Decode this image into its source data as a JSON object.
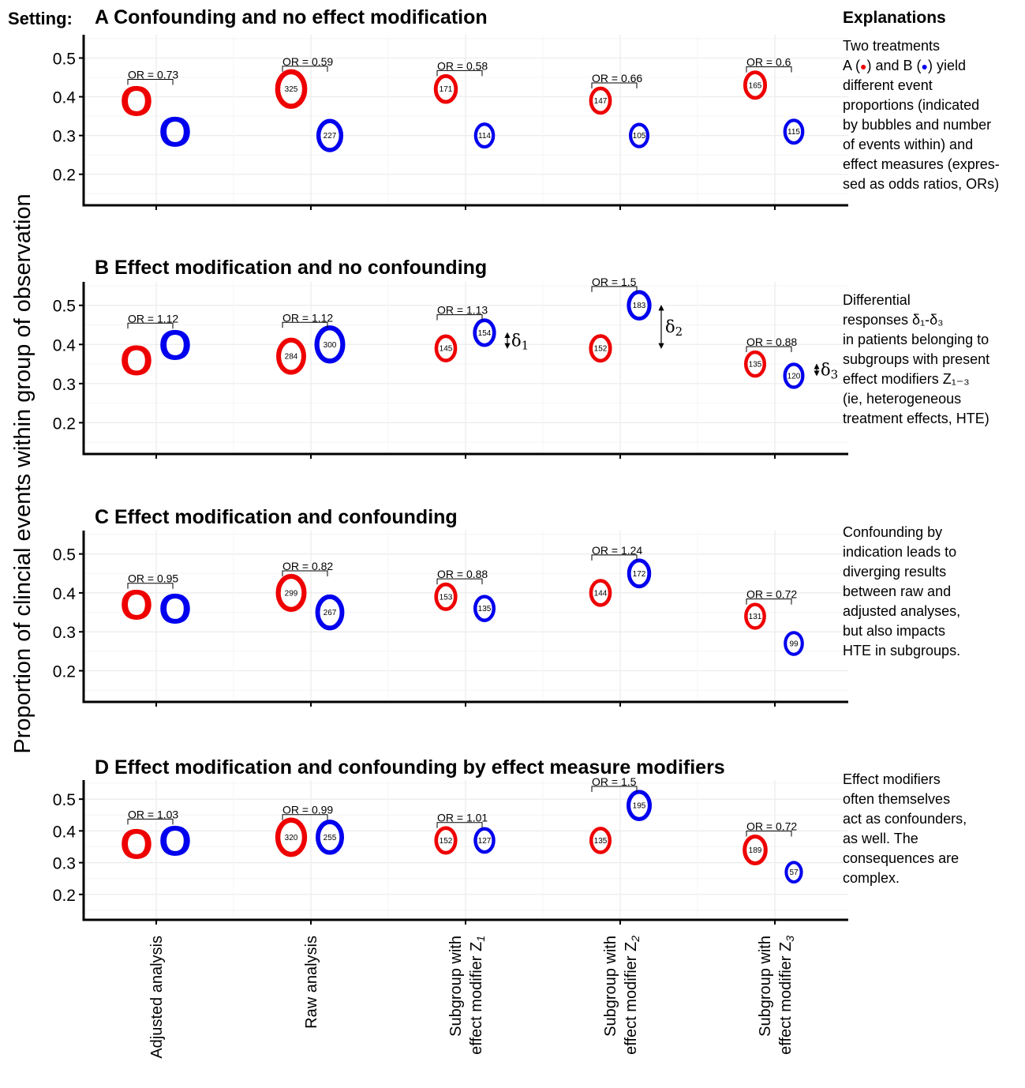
{
  "setting_label": "Setting:",
  "y_axis_label": "Proportion of clincial events within group of observation",
  "colors": {
    "A": "#ee0000",
    "B": "#0000ee"
  },
  "explanations": {
    "header": "Explanations",
    "A": [
      "Two treatments",
      "A (●) and B (●) yield",
      "different event",
      "proportions (indicated",
      "by bubbles and number",
      "of events within) and",
      "effect measures (expres-",
      "sed as odds ratios, ORs)"
    ],
    "B": [
      "Differential",
      "responses δ₁-δ₃",
      "in patients belonging to",
      "subgroups with present",
      "effect modifiers Z₁₋₃",
      "(ie, heterogeneous",
      "treatment effects, HTE)"
    ],
    "C": [
      "Confounding by",
      "indication leads to",
      "diverging results",
      "between raw and",
      "adjusted analyses,",
      "but also impacts",
      "HTE in subgroups."
    ],
    "D": [
      "Effect modifiers",
      "often themselves",
      "act as confounders,",
      "as well. The",
      "consequences are",
      "complex."
    ]
  },
  "chart_data": [
    {
      "type": "scatter",
      "title": "A Confounding and no effect modification",
      "categories": [
        "Adjusted analysis",
        "Raw analysis",
        "Subgroup with effect modifier Z1",
        "Subgroup with effect modifier Z2",
        "Subgroup with effect modifier Z3"
      ],
      "ylim": [
        0.12,
        0.56
      ],
      "yticks": [
        "0.2",
        "0.3",
        "0.4",
        "0.5"
      ],
      "series": [
        {
          "name": "A",
          "values": [
            0.39,
            0.42,
            0.42,
            0.39,
            0.43
          ],
          "counts": [
            "",
            "325",
            "171",
            "147",
            "165"
          ]
        },
        {
          "name": "B",
          "values": [
            0.31,
            0.3,
            0.3,
            0.3,
            0.31
          ],
          "counts": [
            "",
            "227",
            "114",
            "105",
            "115"
          ]
        }
      ],
      "or_labels": [
        "OR = 0.73",
        "OR = 0.59",
        "OR = 0.58",
        "OR = 0.66",
        "OR = 0.6"
      ],
      "deltas": []
    },
    {
      "type": "scatter",
      "title": "B Effect modification and no confounding",
      "categories": [
        "Adjusted analysis",
        "Raw analysis",
        "Subgroup with effect modifier Z1",
        "Subgroup with effect modifier Z2",
        "Subgroup with effect modifier Z3"
      ],
      "ylim": [
        0.12,
        0.56
      ],
      "yticks": [
        "0.2",
        "0.3",
        "0.4",
        "0.5"
      ],
      "series": [
        {
          "name": "A",
          "values": [
            0.36,
            0.37,
            0.39,
            0.39,
            0.35
          ],
          "counts": [
            "",
            "284",
            "145",
            "152",
            "135"
          ]
        },
        {
          "name": "B",
          "values": [
            0.4,
            0.4,
            0.43,
            0.5,
            0.32
          ],
          "counts": [
            "",
            "300",
            "154",
            "183",
            "120"
          ]
        }
      ],
      "or_labels": [
        "OR = 1.12",
        "OR = 1.12",
        "OR = 1.13",
        "OR = 1.5",
        "OR = 0.88"
      ],
      "deltas": [
        {
          "label": "δ",
          "sub": "1"
        },
        {
          "label": "δ",
          "sub": "2"
        },
        {
          "label": "δ",
          "sub": "3"
        }
      ]
    },
    {
      "type": "scatter",
      "title": "C Effect modification and confounding",
      "categories": [
        "Adjusted analysis",
        "Raw analysis",
        "Subgroup with effect modifier Z1",
        "Subgroup with effect modifier Z2",
        "Subgroup with effect modifier Z3"
      ],
      "ylim": [
        0.12,
        0.56
      ],
      "yticks": [
        "0.2",
        "0.3",
        "0.4",
        "0.5"
      ],
      "series": [
        {
          "name": "A",
          "values": [
            0.37,
            0.4,
            0.39,
            0.4,
            0.34
          ],
          "counts": [
            "",
            "299",
            "153",
            "144",
            "131"
          ]
        },
        {
          "name": "B",
          "values": [
            0.36,
            0.35,
            0.36,
            0.45,
            0.27
          ],
          "counts": [
            "",
            "267",
            "135",
            "172",
            "99"
          ]
        }
      ],
      "or_labels": [
        "OR = 0.95",
        "OR = 0.82",
        "OR = 0.88",
        "OR = 1.24",
        "OR = 0.72"
      ],
      "deltas": []
    },
    {
      "type": "scatter",
      "title": "D Effect modification and confounding by effect measure modifiers",
      "categories": [
        "Adjusted analysis",
        "Raw analysis",
        "Subgroup with effect modifier Z1",
        "Subgroup with effect modifier Z2",
        "Subgroup with effect modifier Z3"
      ],
      "ylim": [
        0.12,
        0.56
      ],
      "yticks": [
        "0.2",
        "0.3",
        "0.4",
        "0.5"
      ],
      "series": [
        {
          "name": "A",
          "values": [
            0.36,
            0.38,
            0.37,
            0.37,
            0.34
          ],
          "counts": [
            "",
            "320",
            "152",
            "135",
            "189"
          ]
        },
        {
          "name": "B",
          "values": [
            0.37,
            0.38,
            0.37,
            0.48,
            0.27
          ],
          "counts": [
            "",
            "255",
            "127",
            "195",
            "57"
          ]
        }
      ],
      "or_labels": [
        "OR = 1.03",
        "OR = 0.99",
        "OR = 1.01",
        "OR = 1.5",
        "OR = 0.72"
      ],
      "deltas": []
    }
  ],
  "x_labels": [
    {
      "lines": [
        "Adjusted analysis"
      ],
      "sub": ""
    },
    {
      "lines": [
        "Raw analysis"
      ],
      "sub": ""
    },
    {
      "lines": [
        "Subgroup with",
        "effect modifier Z"
      ],
      "sub": "1"
    },
    {
      "lines": [
        "Subgroup with",
        "effect modifier Z"
      ],
      "sub": "2"
    },
    {
      "lines": [
        "Subgroup with",
        "effect modifier Z"
      ],
      "sub": "3"
    }
  ]
}
